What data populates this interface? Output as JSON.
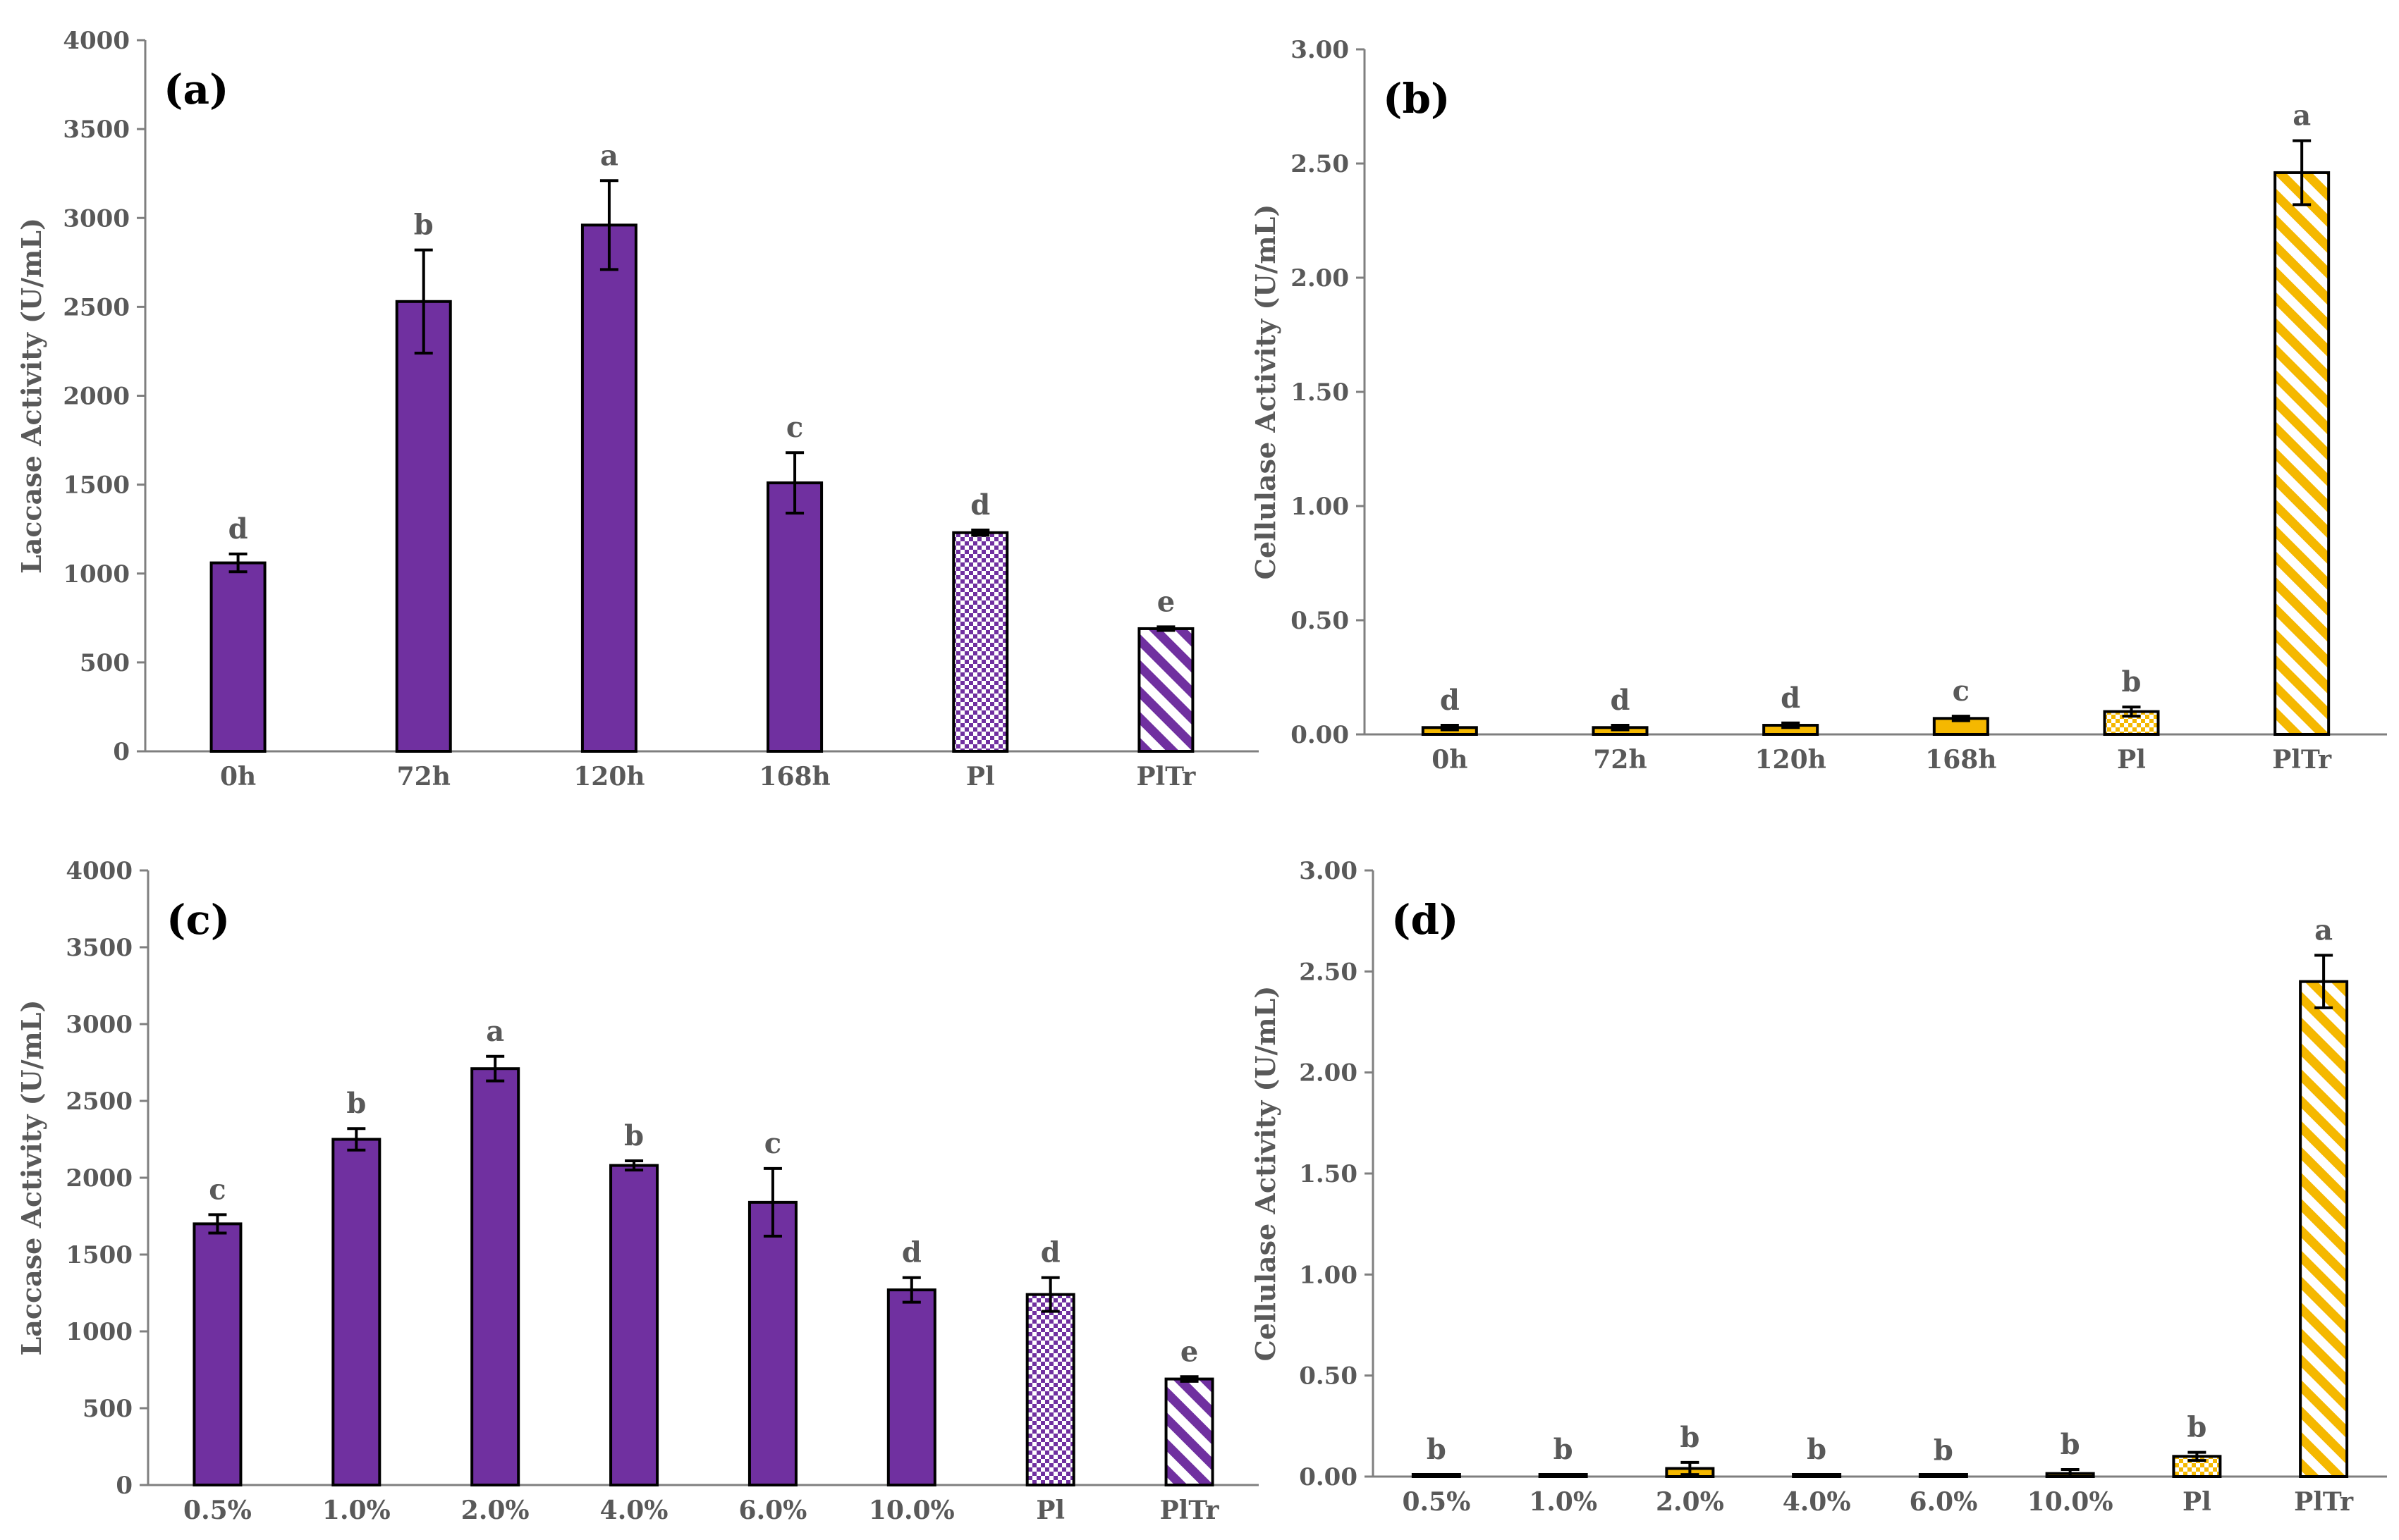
{
  "colors": {
    "laccase": "#7030a0",
    "cellulase": "#f5b800",
    "axis": "#7f7f7f",
    "text": "#595959",
    "bar_outline": "#000000"
  },
  "chart_data": [
    {
      "type": "bar",
      "panel_label": "(a)",
      "ylabel": "Laccase Activity (U/mL)",
      "ylim": [
        0,
        4000
      ],
      "yticks": [
        "0",
        "500",
        "1000",
        "1500",
        "2000",
        "2500",
        "3000",
        "3500",
        "4000"
      ],
      "categories": [
        "0h",
        "72h",
        "120h",
        "168h",
        "Pl",
        "PlTr"
      ],
      "values": [
        1060,
        2530,
        2960,
        1510,
        1230,
        690
      ],
      "errors": [
        50,
        290,
        250,
        170,
        15,
        10
      ],
      "letters": [
        "d",
        "b",
        "a",
        "c",
        "d",
        "e"
      ],
      "patterns": [
        "solid",
        "solid",
        "solid",
        "solid",
        "dots",
        "stripes"
      ],
      "color": "laccase"
    },
    {
      "type": "bar",
      "panel_label": "(b)",
      "ylabel": "Cellulase Activity (U/mL)",
      "ylim": [
        0,
        3
      ],
      "yticks": [
        "0.00",
        "0.50",
        "1.00",
        "1.50",
        "2.00",
        "2.50",
        "3.00"
      ],
      "categories": [
        "0h",
        "72h",
        "120h",
        "168h",
        "Pl",
        "PlTr"
      ],
      "values": [
        0.03,
        0.03,
        0.04,
        0.07,
        0.1,
        2.46
      ],
      "errors": [
        0.01,
        0.01,
        0.01,
        0.01,
        0.02,
        0.14
      ],
      "letters": [
        "d",
        "d",
        "d",
        "c",
        "b",
        "a"
      ],
      "patterns": [
        "solid",
        "solid",
        "solid",
        "solid",
        "dots",
        "stripes"
      ],
      "color": "cellulase"
    },
    {
      "type": "bar",
      "panel_label": "(c)",
      "ylabel": "Laccase Activity (U/mL)",
      "ylim": [
        0,
        4000
      ],
      "yticks": [
        "0",
        "500",
        "1000",
        "1500",
        "2000",
        "2500",
        "3000",
        "3500",
        "4000"
      ],
      "categories": [
        "0.5%",
        "1.0%",
        "2.0%",
        "4.0%",
        "6.0%",
        "10.0%",
        "Pl",
        "PlTr"
      ],
      "values": [
        1700,
        2250,
        2710,
        2080,
        1840,
        1270,
        1240,
        690
      ],
      "errors": [
        60,
        70,
        80,
        30,
        220,
        80,
        110,
        15
      ],
      "letters": [
        "c",
        "b",
        "a",
        "b",
        "c",
        "d",
        "d",
        "e"
      ],
      "patterns": [
        "solid",
        "solid",
        "solid",
        "solid",
        "solid",
        "solid",
        "dots",
        "stripes"
      ],
      "color": "laccase"
    },
    {
      "type": "bar",
      "panel_label": "(d)",
      "ylabel": "Cellulase Activity (U/mL)",
      "ylim": [
        0,
        3
      ],
      "yticks": [
        "0.00",
        "0.50",
        "1.00",
        "1.50",
        "2.00",
        "2.50",
        "3.00"
      ],
      "categories": [
        "0.5%",
        "1.0%",
        "2.0%",
        "4.0%",
        "6.0%",
        "10.0%",
        "Pl",
        "PlTr"
      ],
      "values": [
        0.005,
        0.005,
        0.04,
        0.005,
        0.003,
        0.015,
        0.1,
        2.45
      ],
      "errors": [
        0.005,
        0.005,
        0.03,
        0.005,
        0.003,
        0.02,
        0.02,
        0.13
      ],
      "letters": [
        "b",
        "b",
        "b",
        "b",
        "b",
        "b",
        "b",
        "a"
      ],
      "patterns": [
        "solid",
        "solid",
        "solid",
        "solid",
        "solid",
        "solid",
        "dots",
        "stripes"
      ],
      "color": "cellulase"
    }
  ]
}
